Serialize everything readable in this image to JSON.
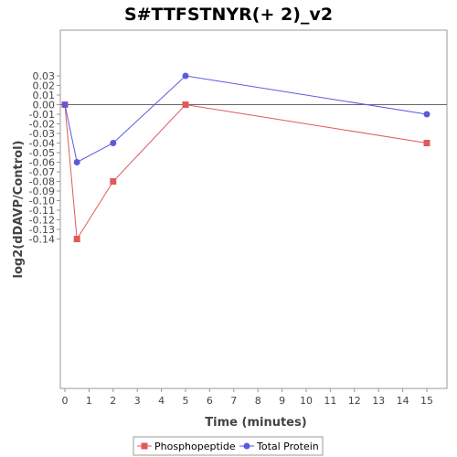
{
  "chart_data": {
    "type": "line",
    "title": "S#TTFSTNYR(+ 2)_v2",
    "xlabel": "Time (minutes)",
    "ylabel": "log2(dDAVP/Control)",
    "xlim": [
      0,
      16
    ],
    "ylim": [
      -0.15,
      0.04
    ],
    "x_ticks": [
      0,
      1,
      2,
      3,
      4,
      5,
      6,
      7,
      8,
      9,
      10,
      11,
      12,
      13,
      14,
      15
    ],
    "y_ticks": [
      0.03,
      0.02,
      0.01,
      0.0,
      -0.01,
      -0.02,
      -0.03,
      -0.04,
      -0.05,
      -0.06,
      -0.07,
      -0.08,
      -0.09,
      -0.1,
      -0.11,
      -0.12,
      -0.13,
      -0.14
    ],
    "y_tick_labels": [
      "0.03",
      "0.02",
      "0.01",
      "0.00",
      "-0.01",
      "-0.02",
      "-0.03",
      "-0.04",
      "-0.05",
      "-0.06",
      "-0.07",
      "-0.08",
      "-0.09",
      "-0.10",
      "-0.11",
      "-0.12",
      "-0.13",
      "-0.14"
    ],
    "zero_line": true,
    "grid": false,
    "legend_position": "bottom",
    "series": [
      {
        "name": "Phosphopeptide",
        "color": "#e05a5a",
        "marker": "square",
        "x": [
          0,
          0.5,
          2,
          5,
          15
        ],
        "values": [
          0.0,
          -0.14,
          -0.08,
          0.0,
          -0.04
        ]
      },
      {
        "name": "Total Protein",
        "color": "#5a5ae0",
        "marker": "circle",
        "x": [
          0,
          0.5,
          2,
          5,
          15
        ],
        "values": [
          0.0,
          -0.06,
          -0.04,
          0.03,
          -0.01
        ]
      }
    ]
  }
}
